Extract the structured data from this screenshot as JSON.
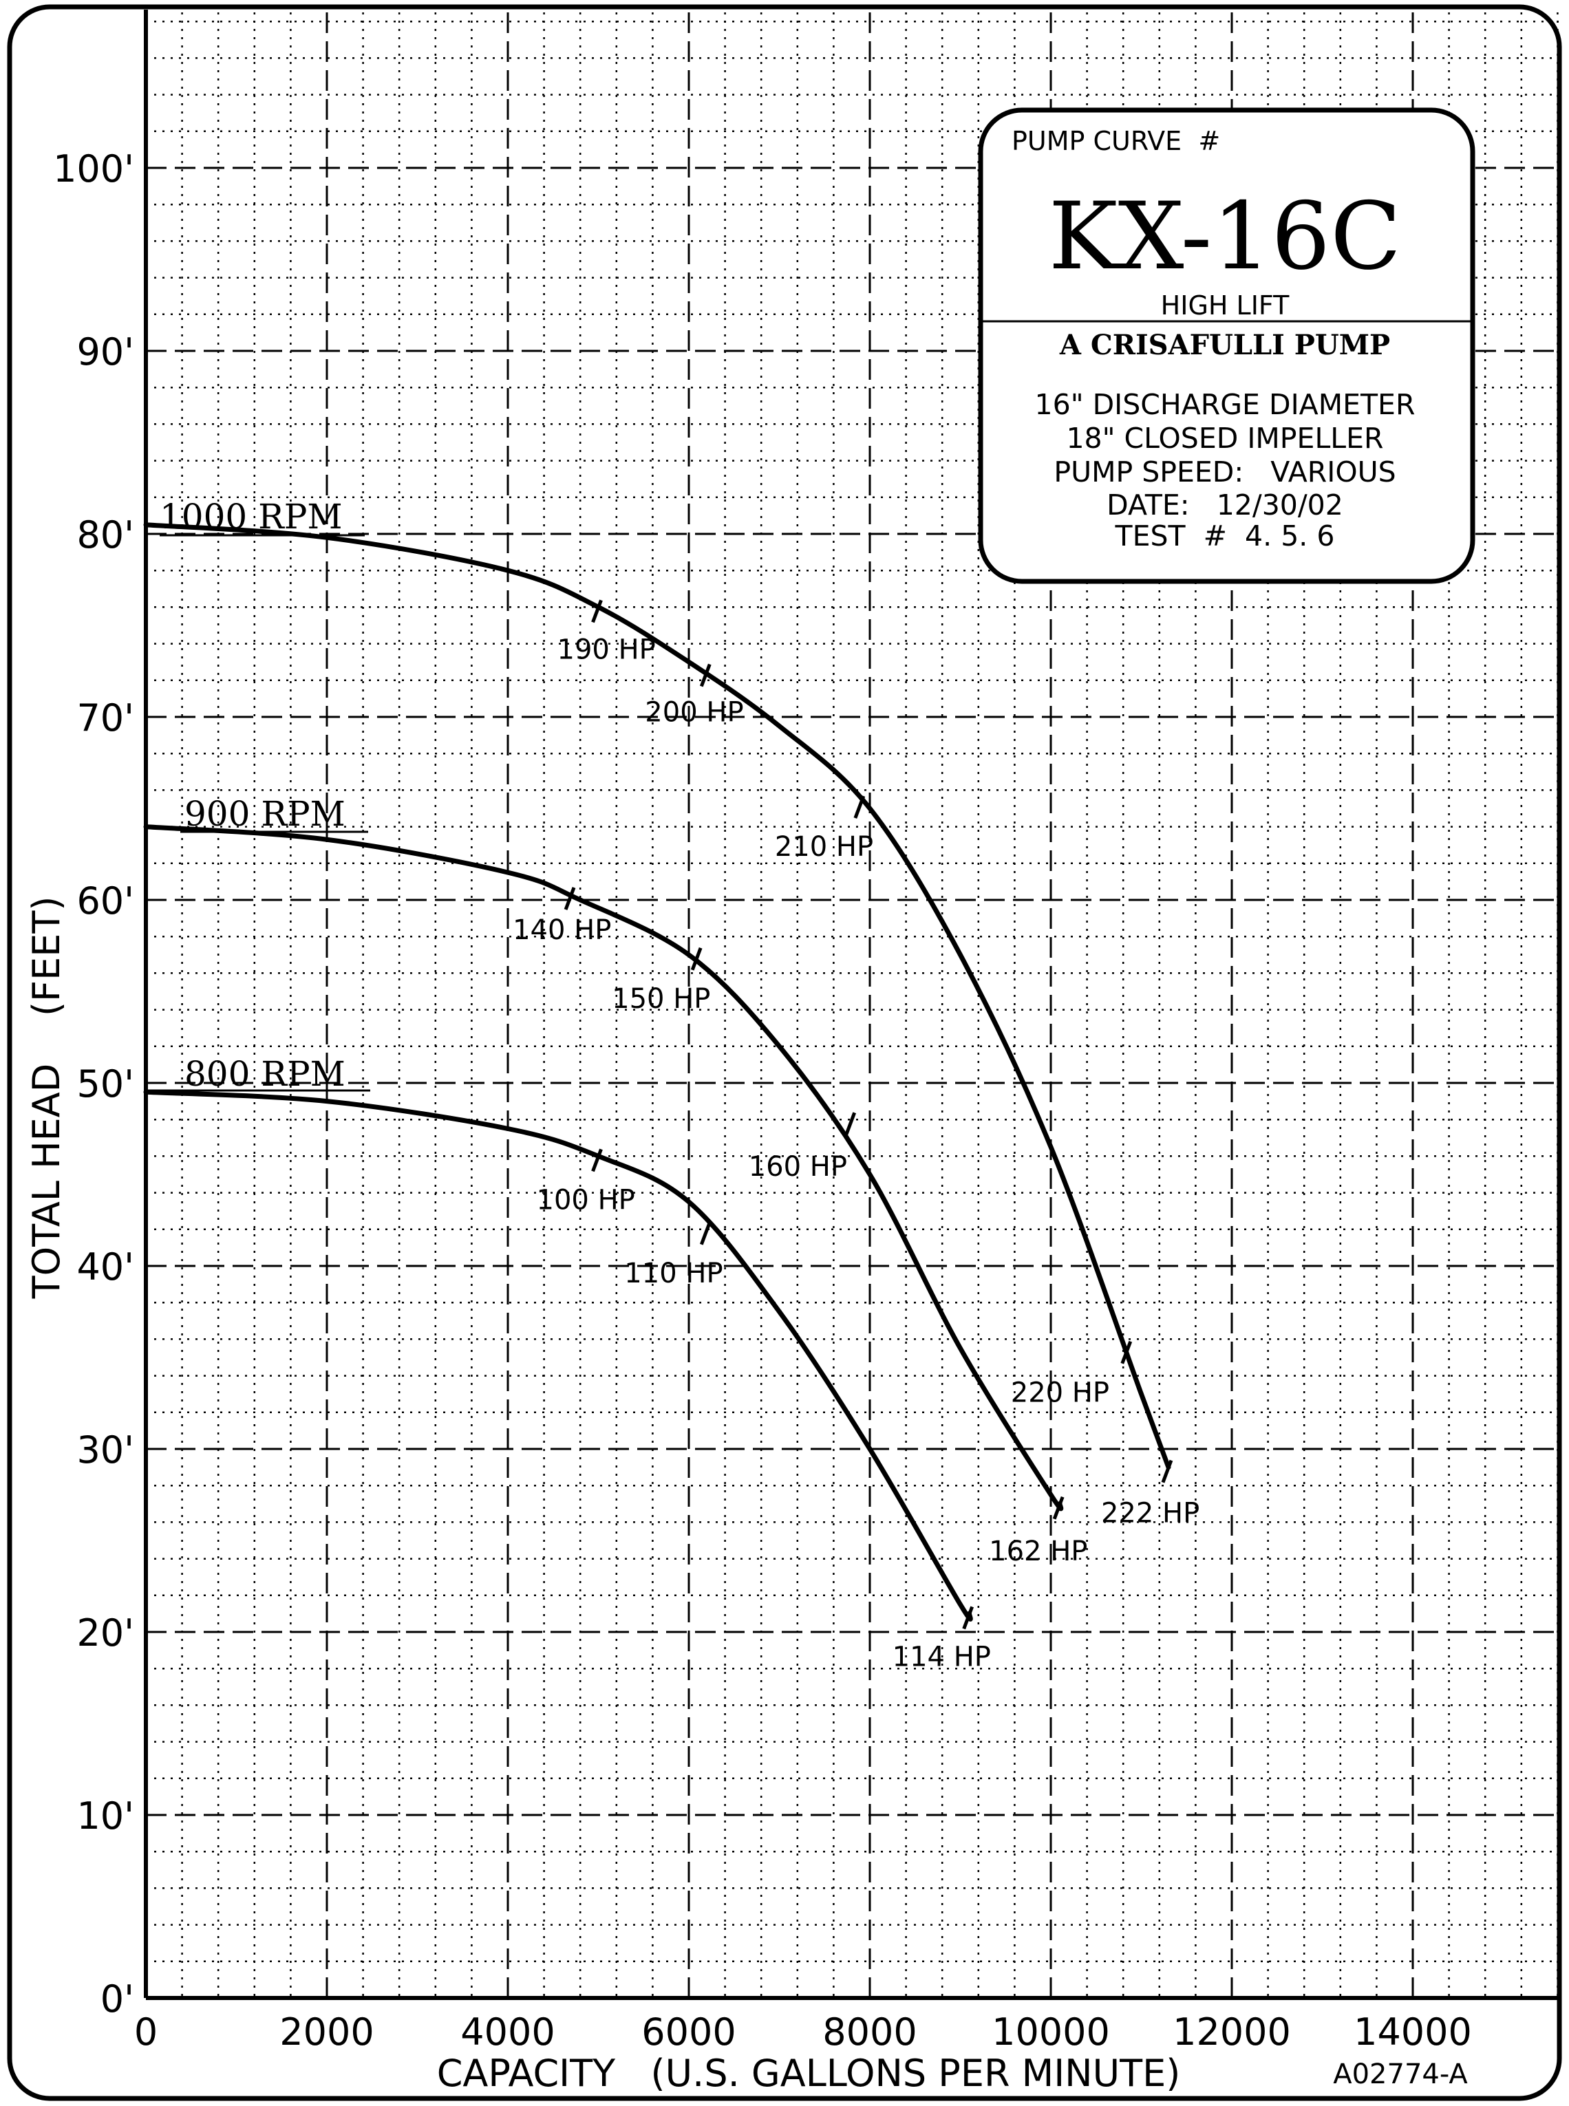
{
  "chart_data": {
    "type": "line",
    "xlabel": "CAPACITY   (U.S. GALLONS PER MINUTE)",
    "ylabel": "TOTAL HEAD    (FEET)",
    "xlim": [
      0,
      15500
    ],
    "ylim": [
      0,
      110
    ],
    "x_ticks": [
      0,
      2000,
      4000,
      6000,
      8000,
      10000,
      12000,
      14000
    ],
    "x_tick_labels": [
      "0",
      "2000",
      "4000",
      "6000",
      "8000",
      "10000",
      "12000",
      "14000"
    ],
    "y_ticks": [
      0,
      10,
      20,
      30,
      40,
      50,
      60,
      70,
      80,
      90,
      100
    ],
    "y_tick_labels": [
      "0'",
      "10'",
      "20'",
      "30'",
      "40'",
      "50'",
      "60'",
      "70'",
      "80'",
      "90'",
      "100'"
    ],
    "grid": true,
    "drawing_number": "A02774-A",
    "series": [
      {
        "name": "1000 RPM",
        "x": [
          0,
          2000,
          4000,
          5000,
          6000,
          7000,
          8000,
          9000,
          10000,
          11000,
          11300
        ],
        "y": [
          80.5,
          79.8,
          78.0,
          76.0,
          73.0,
          69.5,
          65.0,
          57.0,
          46.5,
          33.0,
          29.0
        ],
        "hp_marks": [
          {
            "x": 5000,
            "y": 76.0,
            "label": "190  HP"
          },
          {
            "x": 6200,
            "y": 72.5,
            "label": "200  HP"
          },
          {
            "x": 7900,
            "y": 65.3,
            "label": "210  HP"
          },
          {
            "x": 10850,
            "y": 35.5,
            "label": "220  HP"
          },
          {
            "x": 11300,
            "y": 29.0,
            "label": "222  HP"
          }
        ]
      },
      {
        "name": "900 RPM",
        "x": [
          0,
          2000,
          4000,
          4800,
          6000,
          7000,
          8000,
          9000,
          10000,
          10100
        ],
        "y": [
          64.0,
          63.3,
          61.5,
          60.0,
          57.0,
          52.0,
          45.0,
          35.5,
          27.5,
          27.0
        ],
        "hp_marks": [
          {
            "x": 4700,
            "y": 60.3,
            "label": "140  HP"
          },
          {
            "x": 6100,
            "y": 57.0,
            "label": "150  HP"
          },
          {
            "x": 7800,
            "y": 48.0,
            "label": "160  HP"
          },
          {
            "x": 10100,
            "y": 27.0,
            "label": "162  HP"
          }
        ]
      },
      {
        "name": "800 RPM",
        "x": [
          0,
          2000,
          4000,
          5000,
          6000,
          7000,
          8000,
          9000,
          9100
        ],
        "y": [
          49.5,
          49.0,
          47.5,
          46.0,
          43.5,
          37.5,
          30.0,
          21.5,
          21.0
        ],
        "hp_marks": [
          {
            "x": 5000,
            "y": 46.0,
            "label": "100  HP"
          },
          {
            "x": 6200,
            "y": 42.0,
            "label": "110  HP"
          },
          {
            "x": 9100,
            "y": 21.0,
            "label": "114  HP"
          }
        ]
      }
    ]
  },
  "info_box": {
    "heading": "PUMP CURVE  #",
    "model": "KX-16C",
    "subtitle": "HIGH LIFT",
    "maker": "A CRISAFULLI PUMP",
    "specs": [
      "16\" DISCHARGE DIAMETER",
      "18\" CLOSED IMPELLER",
      "PUMP SPEED:   VARIOUS",
      "DATE:   12/30/02",
      "TEST  #  4. 5. 6"
    ]
  }
}
